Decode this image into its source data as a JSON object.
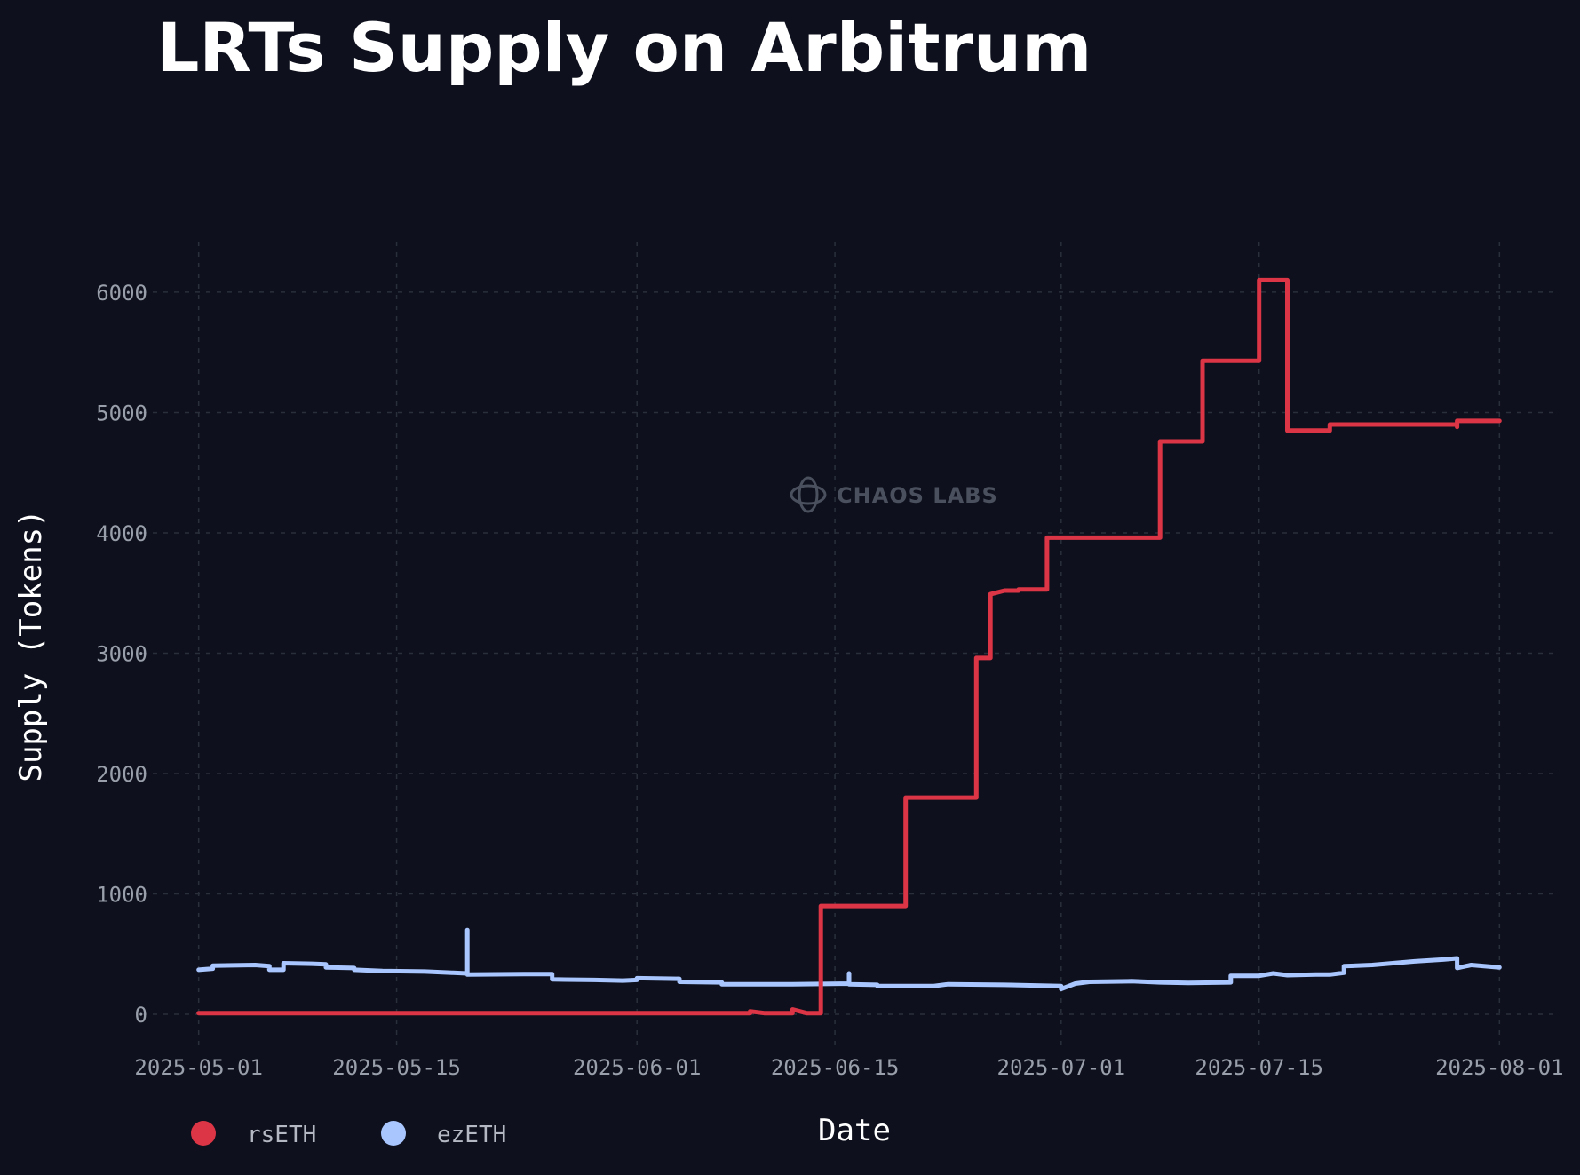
{
  "watermark": "CHAOS LABS",
  "chart_data": {
    "type": "line",
    "title": "LRTs Supply on Arbitrum",
    "xlabel": "Date",
    "ylabel": "Supply (Tokens)",
    "x_ticks": [
      "2025-05-01",
      "2025-05-15",
      "2025-06-01",
      "2025-06-15",
      "2025-07-01",
      "2025-07-15",
      "2025-08-01"
    ],
    "y_ticks": [
      0,
      1000,
      2000,
      3000,
      4000,
      5000,
      6000
    ],
    "xlim": [
      "2025-04-27",
      "2025-08-05"
    ],
    "ylim": [
      -280,
      6420
    ],
    "grid": true,
    "legend_position": "bottom-left",
    "series": [
      {
        "name": "rsETH",
        "color": "#dc3545",
        "points": [
          [
            "2025-05-01",
            10
          ],
          [
            "2025-06-09",
            10
          ],
          [
            "2025-06-09",
            25
          ],
          [
            "2025-06-10",
            10
          ],
          [
            "2025-06-12",
            10
          ],
          [
            "2025-06-12",
            40
          ],
          [
            "2025-06-13",
            10
          ],
          [
            "2025-06-14",
            10
          ],
          [
            "2025-06-14",
            900
          ],
          [
            "2025-06-20",
            900
          ],
          [
            "2025-06-20",
            1800
          ],
          [
            "2025-06-25",
            1800
          ],
          [
            "2025-06-25",
            2450
          ],
          [
            "2025-06-25",
            2960
          ],
          [
            "2025-06-26",
            2960
          ],
          [
            "2025-06-26",
            3490
          ],
          [
            "2025-06-27",
            3520
          ],
          [
            "2025-06-28",
            3520
          ],
          [
            "2025-06-28",
            3530
          ],
          [
            "2025-06-30",
            3530
          ],
          [
            "2025-06-30",
            3960
          ],
          [
            "2025-07-08",
            3960
          ],
          [
            "2025-07-08",
            4760
          ],
          [
            "2025-07-11",
            4760
          ],
          [
            "2025-07-11",
            5430
          ],
          [
            "2025-07-15",
            5430
          ],
          [
            "2025-07-15",
            6100
          ],
          [
            "2025-07-17",
            6100
          ],
          [
            "2025-07-17",
            4850
          ],
          [
            "2025-07-20",
            4850
          ],
          [
            "2025-07-20",
            4900
          ],
          [
            "2025-07-29",
            4900
          ],
          [
            "2025-07-29",
            4880
          ],
          [
            "2025-07-29",
            4930
          ],
          [
            "2025-08-01",
            4930
          ]
        ]
      },
      {
        "name": "ezETH",
        "color": "#a9c6ff",
        "points": [
          [
            "2025-05-01",
            370
          ],
          [
            "2025-05-02",
            380
          ],
          [
            "2025-05-02",
            405
          ],
          [
            "2025-05-05",
            410
          ],
          [
            "2025-05-06",
            400
          ],
          [
            "2025-05-06",
            370
          ],
          [
            "2025-05-07",
            370
          ],
          [
            "2025-05-07",
            425
          ],
          [
            "2025-05-09",
            420
          ],
          [
            "2025-05-10",
            415
          ],
          [
            "2025-05-10",
            390
          ],
          [
            "2025-05-12",
            385
          ],
          [
            "2025-05-12",
            370
          ],
          [
            "2025-05-14",
            360
          ],
          [
            "2025-05-17",
            355
          ],
          [
            "2025-05-19",
            345
          ],
          [
            "2025-05-20",
            340
          ],
          [
            "2025-05-20",
            700
          ],
          [
            "2025-05-20",
            330
          ],
          [
            "2025-05-24",
            335
          ],
          [
            "2025-05-26",
            335
          ],
          [
            "2025-05-26",
            290
          ],
          [
            "2025-05-29",
            285
          ],
          [
            "2025-05-31",
            280
          ],
          [
            "2025-06-01",
            285
          ],
          [
            "2025-06-01",
            300
          ],
          [
            "2025-06-04",
            295
          ],
          [
            "2025-06-04",
            270
          ],
          [
            "2025-06-07",
            265
          ],
          [
            "2025-06-07",
            250
          ],
          [
            "2025-06-12",
            250
          ],
          [
            "2025-06-16",
            255
          ],
          [
            "2025-06-16",
            340
          ],
          [
            "2025-06-16",
            250
          ],
          [
            "2025-06-18",
            245
          ],
          [
            "2025-06-18",
            235
          ],
          [
            "2025-06-22",
            235
          ],
          [
            "2025-06-23",
            250
          ],
          [
            "2025-06-27",
            245
          ],
          [
            "2025-07-01",
            235
          ],
          [
            "2025-07-01",
            210
          ],
          [
            "2025-07-02",
            255
          ],
          [
            "2025-07-03",
            270
          ],
          [
            "2025-07-06",
            275
          ],
          [
            "2025-07-08",
            265
          ],
          [
            "2025-07-10",
            260
          ],
          [
            "2025-07-13",
            265
          ],
          [
            "2025-07-13",
            320
          ],
          [
            "2025-07-15",
            320
          ],
          [
            "2025-07-16",
            340
          ],
          [
            "2025-07-17",
            325
          ],
          [
            "2025-07-19",
            330
          ],
          [
            "2025-07-20",
            330
          ],
          [
            "2025-07-21",
            345
          ],
          [
            "2025-07-21",
            400
          ],
          [
            "2025-07-23",
            410
          ],
          [
            "2025-07-24",
            420
          ],
          [
            "2025-07-26",
            440
          ],
          [
            "2025-07-28",
            455
          ],
          [
            "2025-07-29",
            465
          ],
          [
            "2025-07-29",
            385
          ],
          [
            "2025-07-30",
            410
          ],
          [
            "2025-08-01",
            390
          ]
        ]
      }
    ]
  }
}
